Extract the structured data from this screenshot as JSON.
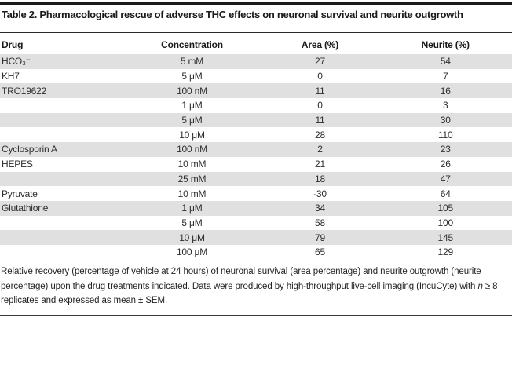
{
  "title": "Table 2. Pharmacological rescue of adverse THC effects on neuronal survival and neurite outgrowth",
  "table": {
    "headers": [
      "Drug",
      "Concentration",
      "Area (%)",
      "Neurite (%)"
    ],
    "rows": [
      {
        "drug": "HCO₃⁻",
        "concentration": "5 mM",
        "area": "27",
        "neurite": "54"
      },
      {
        "drug": "KH7",
        "concentration": "5 μM",
        "area": "0",
        "neurite": "7"
      },
      {
        "drug": "TRO19622",
        "concentration": "100 nM",
        "area": "11",
        "neurite": "16"
      },
      {
        "drug": "",
        "concentration": "1 μM",
        "area": "0",
        "neurite": "3"
      },
      {
        "drug": "",
        "concentration": "5 μM",
        "area": "11",
        "neurite": "30"
      },
      {
        "drug": "",
        "concentration": "10 μM",
        "area": "28",
        "neurite": "110"
      },
      {
        "drug": "Cyclosporin A",
        "concentration": "100 nM",
        "area": "2",
        "neurite": "23"
      },
      {
        "drug": "HEPES",
        "concentration": "10 mM",
        "area": "21",
        "neurite": "26"
      },
      {
        "drug": "",
        "concentration": "25 mM",
        "area": "18",
        "neurite": "47"
      },
      {
        "drug": "Pyruvate",
        "concentration": "10 mM",
        "area": "-30",
        "neurite": "64"
      },
      {
        "drug": "Glutathione",
        "concentration": "1 μM",
        "area": "34",
        "neurite": "105"
      },
      {
        "drug": "",
        "concentration": "5 μM",
        "area": "58",
        "neurite": "100"
      },
      {
        "drug": "",
        "concentration": "10 μM",
        "area": "79",
        "neurite": "145"
      },
      {
        "drug": "",
        "concentration": "100 μM",
        "area": "65",
        "neurite": "129"
      }
    ]
  },
  "footnote": {
    "text_before_n": "Relative recovery (percentage of vehicle at 24 hours) of neuronal survival (area percentage) and neurite outgrowth (neurite percentage) upon the drug treatments indicated. Data were produced by high-throughput live-cell imaging (IncuCyte) with ",
    "italic_n": "n",
    "text_after_n": " ≥ 8 replicates and expressed as mean ± SEM."
  },
  "colors": {
    "top_bar": "#1a1a1a",
    "rule": "#2b2b2b",
    "bottom_rule": "#3a3a3a",
    "row_shading": "#e0e0e0",
    "title_text": "#1a1a1a",
    "body_text": "#2e2e2e"
  }
}
